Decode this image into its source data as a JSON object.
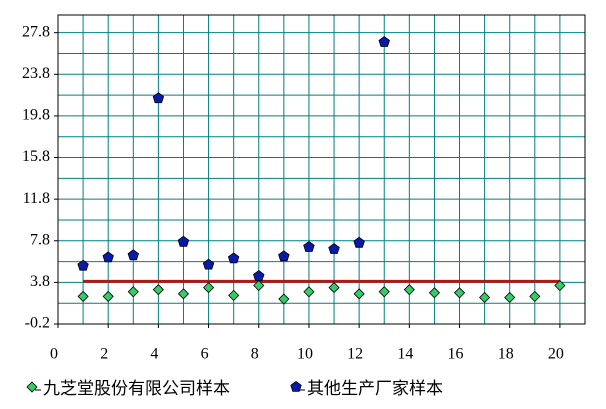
{
  "chart_data": {
    "type": "scatter",
    "xlim": [
      0,
      21
    ],
    "xticks": [
      0,
      2,
      4,
      6,
      8,
      10,
      12,
      14,
      16,
      18,
      20
    ],
    "xminorticks": [
      1,
      3,
      5,
      7,
      9,
      11,
      13,
      15,
      17,
      19,
      21
    ],
    "ylim": [
      -0.2,
      29.5
    ],
    "yticks": [
      -0.2,
      3.8,
      7.8,
      11.8,
      15.8,
      19.8,
      23.8,
      27.8
    ],
    "yminorticks": [
      1.8,
      5.8,
      9.8,
      13.8,
      17.8,
      21.8,
      25.8
    ],
    "grid": true,
    "grid_color": "#007f7f",
    "series": [
      {
        "name": "九芝堂股份有限公司样本",
        "color": "#33cc66",
        "marker": "diamond",
        "x": [
          1,
          2,
          3,
          4,
          5,
          6,
          7,
          8,
          9,
          10,
          11,
          12,
          13,
          14,
          15,
          16,
          17,
          18,
          19,
          20
        ],
        "values": [
          2.45,
          2.45,
          2.9,
          3.1,
          2.7,
          3.3,
          2.55,
          3.5,
          2.2,
          2.9,
          3.3,
          2.7,
          2.9,
          3.1,
          2.8,
          2.8,
          2.35,
          2.35,
          2.45,
          3.5
        ]
      },
      {
        "name": "其他生产厂家样本",
        "color": "#0a1aa8",
        "marker": "pentagon",
        "x": [
          1,
          2,
          3,
          4,
          5,
          6,
          7,
          8,
          9,
          10,
          11,
          12,
          13
        ],
        "values": [
          5.4,
          6.2,
          6.4,
          21.5,
          7.7,
          5.5,
          6.1,
          4.4,
          6.3,
          7.2,
          7.0,
          7.6,
          26.9
        ]
      }
    ],
    "reference_line": {
      "value": 3.9,
      "x": [
        1,
        20
      ],
      "color": "#b01818"
    }
  }
}
